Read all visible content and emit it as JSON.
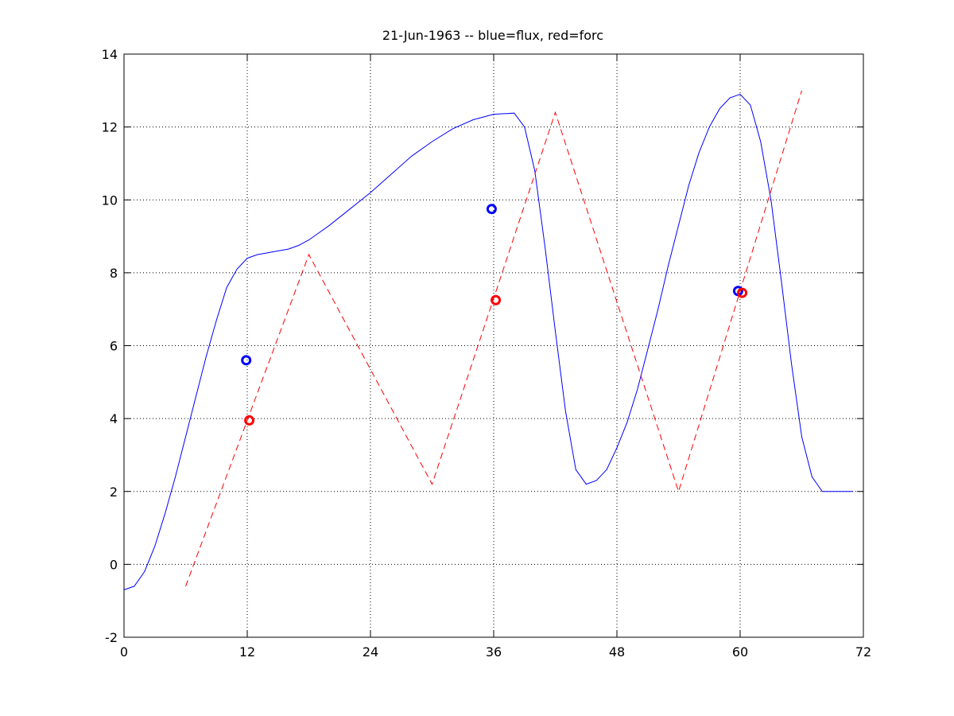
{
  "chart_data": {
    "type": "line",
    "title": "21-Jun-1963 -- blue=flux, red=forc",
    "xlabel": "",
    "ylabel": "",
    "xlim": [
      0,
      72
    ],
    "ylim": [
      -2,
      14
    ],
    "xticks": [
      0,
      12,
      24,
      36,
      48,
      60,
      72
    ],
    "yticks": [
      -2,
      0,
      2,
      4,
      6,
      8,
      10,
      12,
      14
    ],
    "grid": true,
    "series": [
      {
        "color": "#0000ff",
        "style": "solid",
        "x": [
          0,
          1,
          2,
          3,
          4,
          5,
          6,
          7,
          8,
          9,
          10,
          11,
          12,
          13,
          14,
          15,
          16,
          17,
          18,
          19,
          20,
          22,
          24,
          26,
          28,
          30,
          32,
          34,
          36,
          38,
          39,
          40,
          41,
          42,
          43,
          44,
          45,
          46,
          47,
          48,
          49,
          50,
          51,
          52,
          53,
          54,
          55,
          56,
          57,
          58,
          59,
          60,
          61,
          62,
          63,
          64,
          65,
          66,
          67,
          68,
          69,
          70,
          71
        ],
        "y": [
          -0.7,
          -0.6,
          -0.2,
          0.5,
          1.4,
          2.4,
          3.5,
          4.6,
          5.7,
          6.7,
          7.6,
          8.1,
          8.4,
          8.5,
          8.55,
          8.6,
          8.65,
          8.75,
          8.9,
          9.1,
          9.3,
          9.75,
          10.2,
          10.7,
          11.2,
          11.6,
          11.95,
          12.2,
          12.35,
          12.38,
          12.0,
          10.8,
          8.7,
          6.4,
          4.2,
          2.6,
          2.2,
          2.3,
          2.6,
          3.2,
          3.9,
          4.8,
          5.9,
          7.0,
          8.2,
          9.3,
          10.4,
          11.3,
          12.0,
          12.5,
          12.8,
          12.9,
          12.6,
          11.6,
          10.0,
          7.8,
          5.5,
          3.5,
          2.4,
          2.0,
          2.0,
          2.0,
          2.0
        ]
      },
      {
        "color": "#ff0000",
        "style": "dashed",
        "x": [
          6,
          18,
          30,
          42,
          54,
          66
        ],
        "y": [
          -0.6,
          8.5,
          2.2,
          12.4,
          2.0,
          13.0
        ]
      }
    ],
    "markers": [
      {
        "color": "#0000ff",
        "x": 11.9,
        "y": 5.6
      },
      {
        "color": "#ff0000",
        "x": 12.2,
        "y": 3.95
      },
      {
        "color": "#0000ff",
        "x": 35.8,
        "y": 9.75
      },
      {
        "color": "#ff0000",
        "x": 36.2,
        "y": 7.25
      },
      {
        "color": "#0000ff",
        "x": 59.8,
        "y": 7.5
      },
      {
        "color": "#ff0000",
        "x": 60.2,
        "y": 7.45
      }
    ]
  }
}
